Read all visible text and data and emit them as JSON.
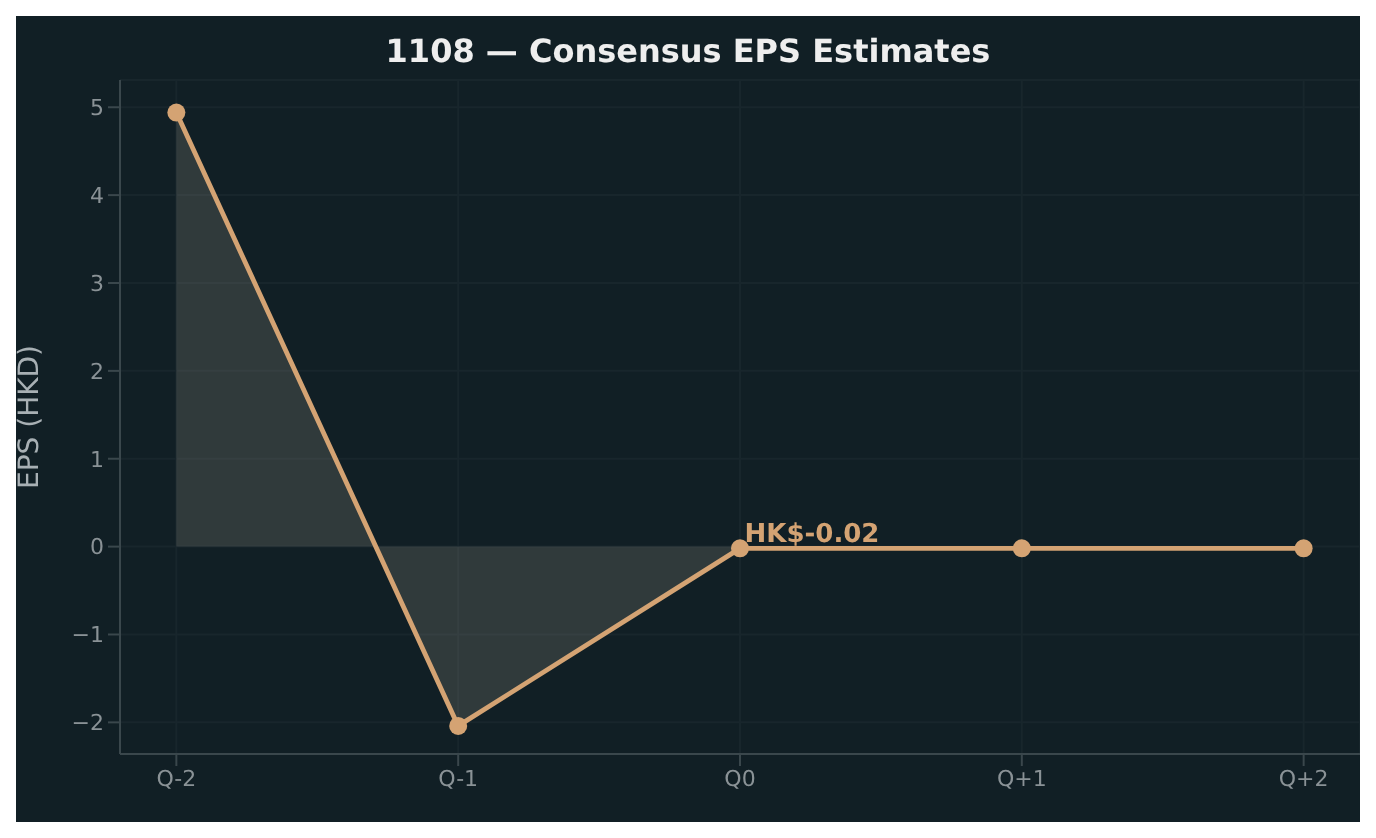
{
  "chart_data": {
    "type": "area",
    "title": "1108 — Consensus EPS Estimates",
    "ylabel": "EPS (HKD)",
    "categories": [
      "Q-2",
      "Q-1",
      "Q0",
      "Q+1",
      "Q+2"
    ],
    "series": [
      {
        "color": "#d4a373",
        "values": [
          4.94,
          -2.04,
          -0.02,
          -0.02,
          -0.02
        ]
      }
    ],
    "ylim": [
      -2.36,
      5.31
    ],
    "yticks": [
      {
        "value": -2,
        "label": "−2"
      },
      {
        "value": -1,
        "label": "−1"
      },
      0,
      1,
      2,
      3,
      4,
      5
    ],
    "annotations": [
      {
        "text": "HK$-0.02",
        "x": "Q0",
        "y": -0.02
      }
    ],
    "grid": true,
    "marker": "circle",
    "line_style": "solid"
  }
}
